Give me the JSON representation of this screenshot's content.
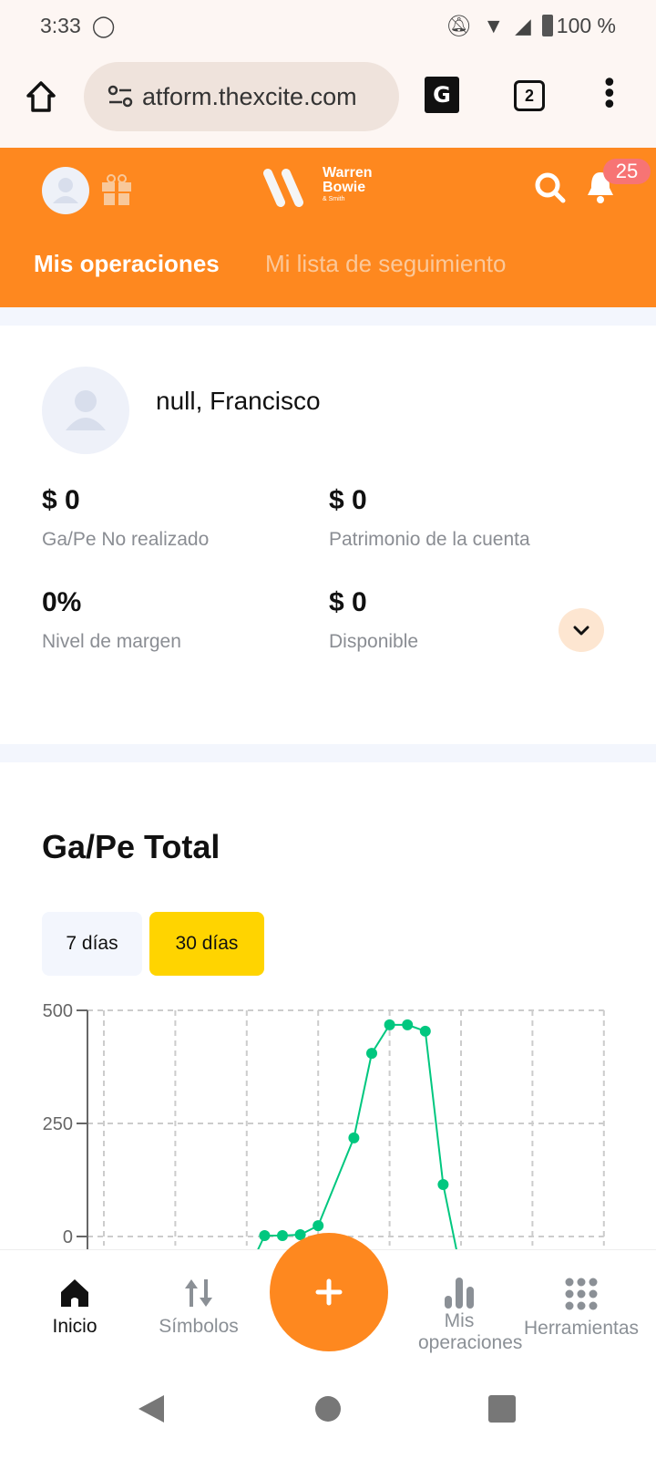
{
  "status_bar": {
    "time": "3:33",
    "battery": "100 %"
  },
  "browser": {
    "url": "atform.thexcite.com",
    "tab_count": "2"
  },
  "header": {
    "brand_line1": "Warren",
    "brand_line2": "Bowie",
    "brand_line3": "& Smith",
    "notification_count": "25",
    "tabs": [
      {
        "label": "Mis operaciones",
        "active": true
      },
      {
        "label": "Mi lista de seguimiento",
        "active": false
      }
    ],
    "accent": "#fe881f"
  },
  "account": {
    "name": "null, Francisco",
    "stats": [
      {
        "value": "$ 0",
        "label": "Ga/Pe No realizado"
      },
      {
        "value": "$ 0",
        "label": "Patrimonio de la cuenta"
      },
      {
        "value": "0%",
        "label": "Nivel de margen"
      },
      {
        "value": "$ 0",
        "label": "Disponible"
      }
    ]
  },
  "pnl": {
    "title": "Ga/Pe Total",
    "ranges": [
      {
        "label": "7 días",
        "active": false
      },
      {
        "label": "30 días",
        "active": true
      }
    ]
  },
  "chart_data": {
    "type": "line",
    "title": "",
    "ylim": [
      0,
      500
    ],
    "yticks": [
      "500",
      "250",
      "0"
    ],
    "grid": true,
    "color": "#00c77f",
    "points": [
      {
        "x": 9,
        "y": 2
      },
      {
        "x": 10,
        "y": 2
      },
      {
        "x": 11,
        "y": 4
      },
      {
        "x": 12,
        "y": 24
      },
      {
        "x": 14,
        "y": 218
      },
      {
        "x": 15,
        "y": 405
      },
      {
        "x": 16,
        "y": 468
      },
      {
        "x": 17,
        "y": 468
      },
      {
        "x": 18,
        "y": 454
      },
      {
        "x": 19,
        "y": 115
      }
    ]
  },
  "bottom_nav": [
    {
      "label": "Inicio",
      "active": true
    },
    {
      "label": "Símbolos"
    },
    {
      "label": "Mis operaciones"
    },
    {
      "label": "Herramientas"
    }
  ]
}
